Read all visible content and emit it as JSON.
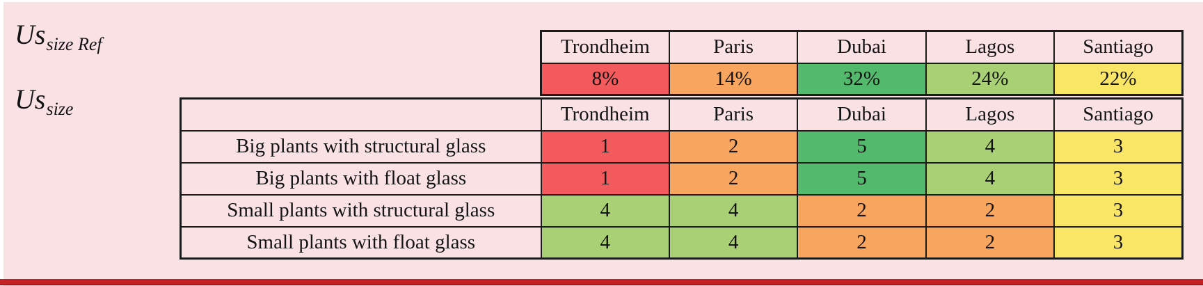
{
  "panel": {
    "background_color": "#FAE2E4",
    "bottom_rule_color": "#C42127",
    "border_color": "#1a1a1a"
  },
  "labels": {
    "ref": {
      "base": "Us",
      "sub": "size Ref"
    },
    "main": {
      "base": "Us",
      "sub": "size"
    }
  },
  "color_scale": {
    "1": "#F25A5E",
    "2": "#F7A55F",
    "3": "#FAE666",
    "4": "#A9D074",
    "5": "#53B96D"
  },
  "ref_table": {
    "cities": [
      "Trondheim",
      "Paris",
      "Dubai",
      "Lagos",
      "Santiago"
    ],
    "weights": [
      {
        "value": "8%",
        "color": "#F25A5E"
      },
      {
        "value": "14%",
        "color": "#F7A55F"
      },
      {
        "value": "32%",
        "color": "#53B96D"
      },
      {
        "value": "24%",
        "color": "#A9D074"
      },
      {
        "value": "22%",
        "color": "#FAE666"
      }
    ]
  },
  "main_table": {
    "corner_cell": "",
    "cities": [
      "Trondheim",
      "Paris",
      "Dubai",
      "Lagos",
      "Santiago"
    ],
    "rows": [
      {
        "label": "Big plants with structural glass",
        "scores": [
          "1",
          "2",
          "5",
          "4",
          "3"
        ]
      },
      {
        "label": "Big plants with float glass",
        "scores": [
          "1",
          "2",
          "5",
          "4",
          "3"
        ]
      },
      {
        "label": "Small plants with structural glass",
        "scores": [
          "4",
          "4",
          "2",
          "2",
          "3"
        ]
      },
      {
        "label": "Small plants with float glass",
        "scores": [
          "4",
          "4",
          "2",
          "2",
          "3"
        ]
      }
    ]
  }
}
